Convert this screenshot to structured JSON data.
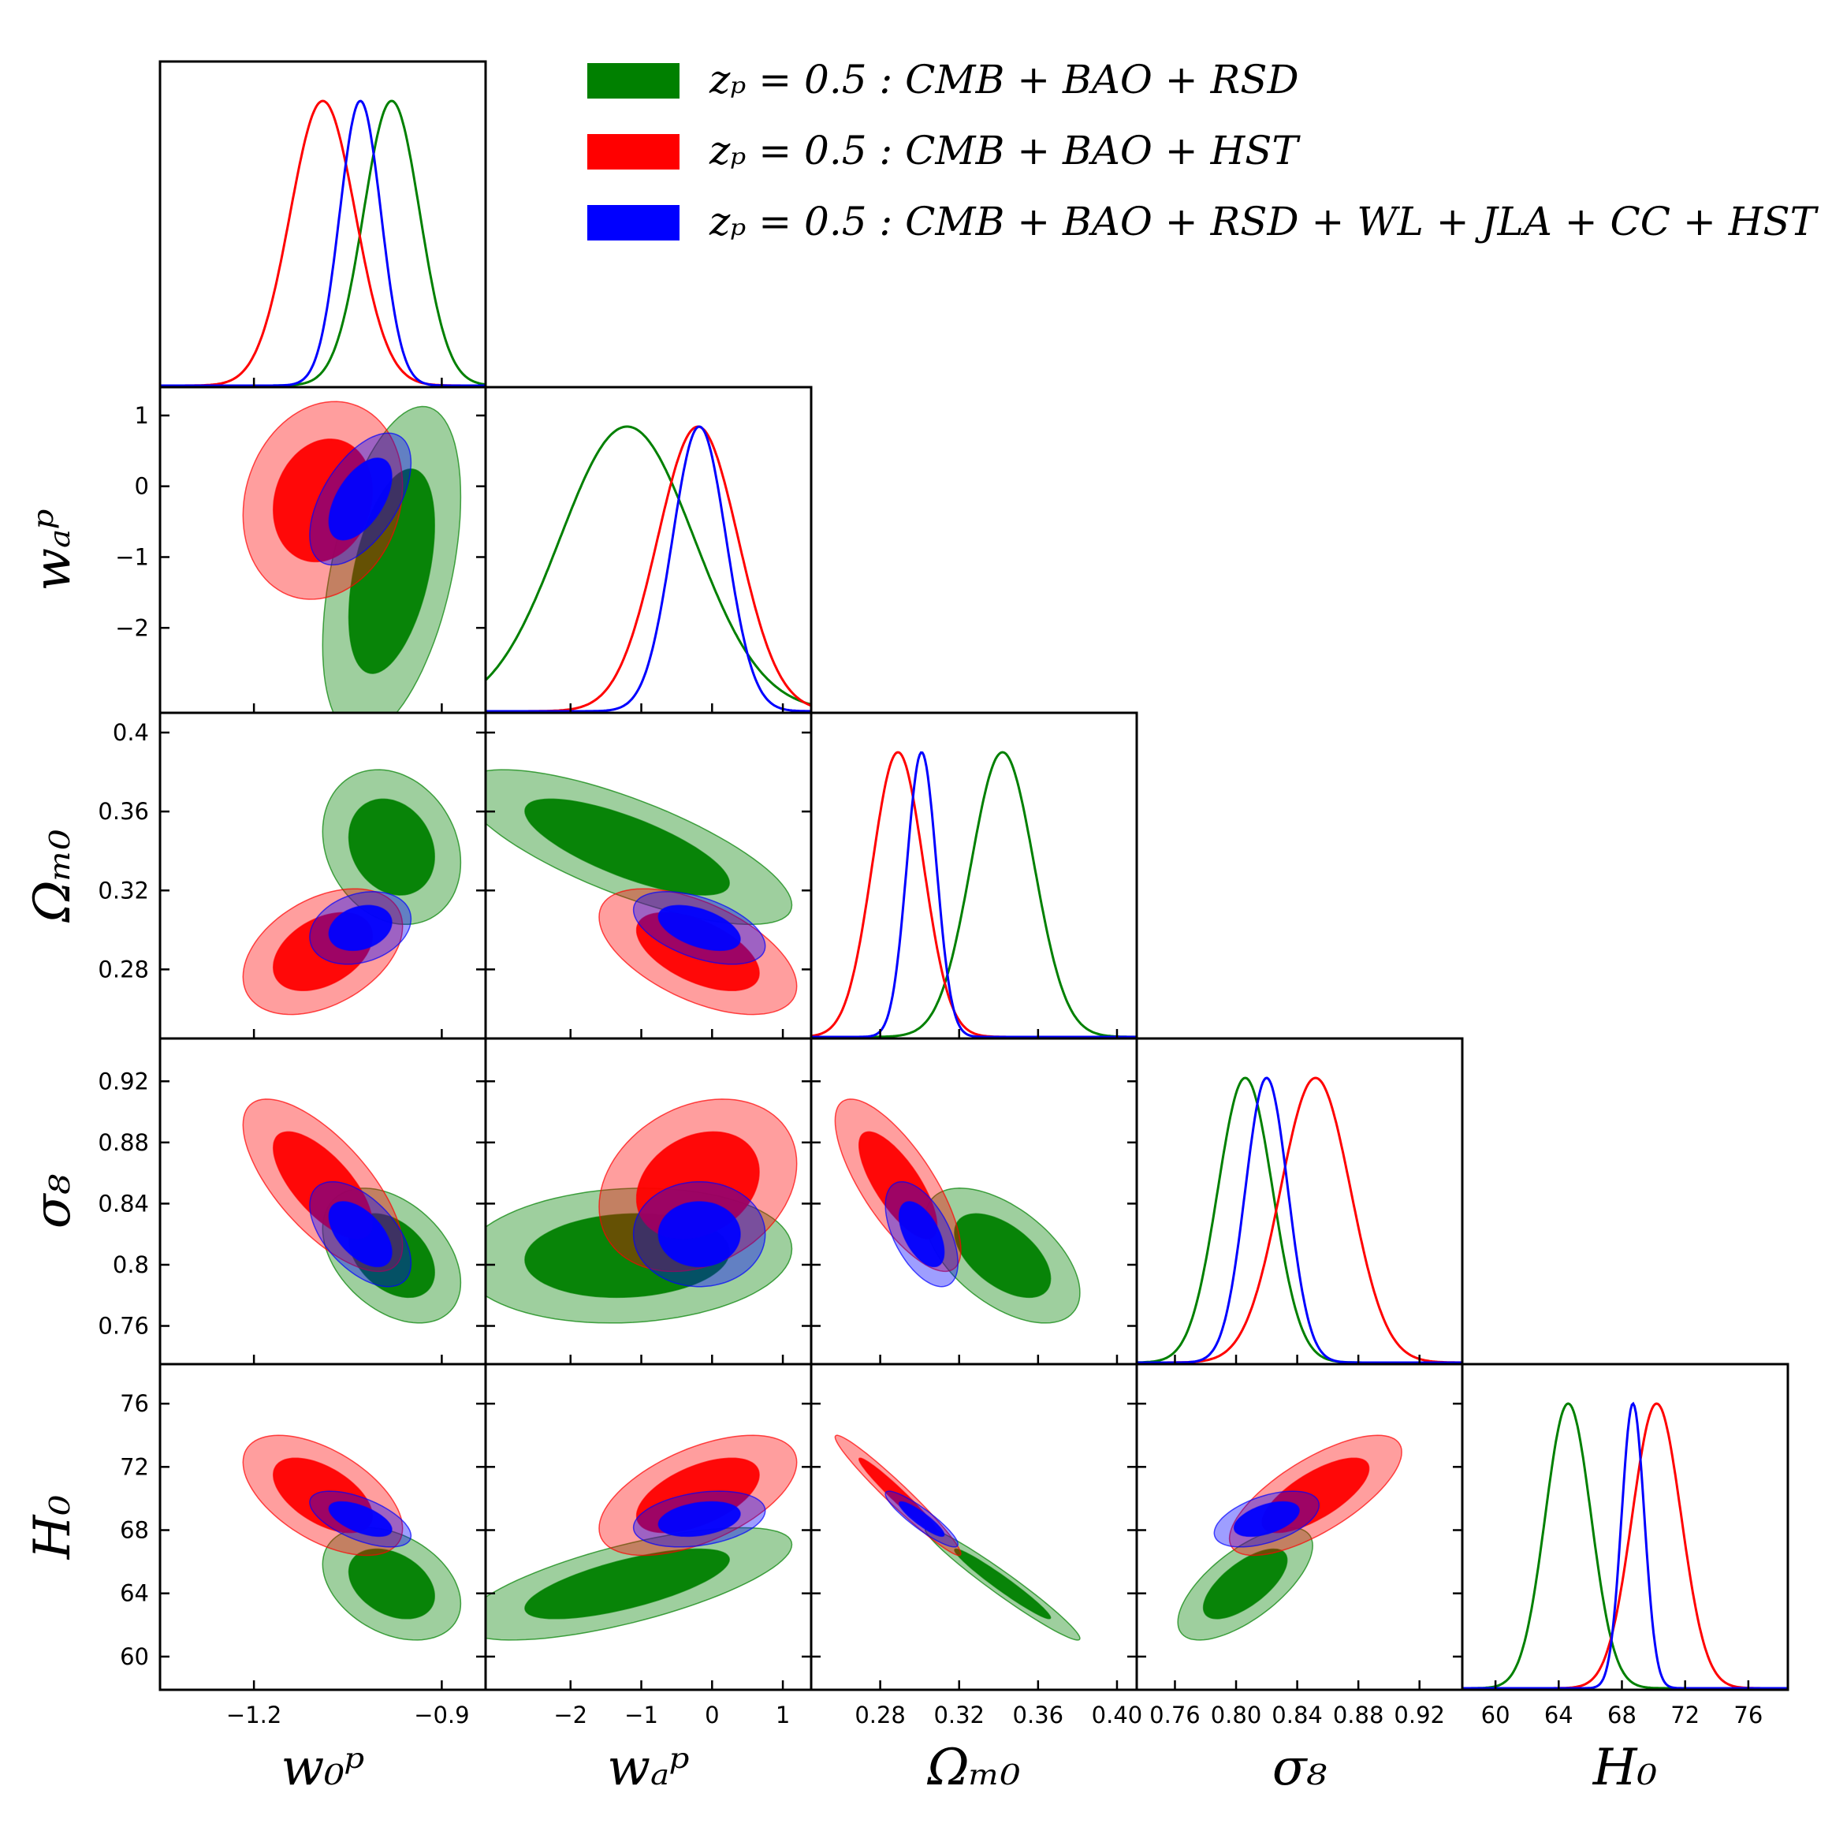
{
  "chart_data": {
    "type": "triangle",
    "parameters": [
      {
        "key": "w0",
        "label": "w₀ᵖ",
        "range": [
          -1.35,
          -0.83
        ],
        "ticks": [
          -1.2,
          -0.9
        ],
        "tick_labels": [
          "−1.2",
          "−0.9"
        ]
      },
      {
        "key": "wa",
        "label": "wₐᵖ",
        "range": [
          -3.2,
          1.4
        ],
        "ticks": [
          -2,
          -1,
          0,
          1
        ],
        "tick_labels": [
          "−2",
          "−1",
          "0",
          "1"
        ]
      },
      {
        "key": "Om",
        "label": "Ωₘ₀",
        "range": [
          0.245,
          0.41
        ],
        "ticks": [
          0.28,
          0.32,
          0.36,
          0.4
        ],
        "tick_labels": [
          "0.28",
          "0.32",
          "0.36",
          "0.40"
        ]
      },
      {
        "key": "s8",
        "label": "σ₈",
        "range": [
          0.735,
          0.948
        ],
        "ticks": [
          0.76,
          0.8,
          0.84,
          0.88,
          0.92
        ],
        "tick_labels": [
          "0.76",
          "0.80",
          "0.84",
          "0.88",
          "0.92"
        ]
      },
      {
        "key": "H0",
        "label": "H₀",
        "range": [
          57.9,
          78.5
        ],
        "ticks": [
          60,
          64,
          68,
          72,
          76
        ],
        "tick_labels": [
          "60",
          "64",
          "68",
          "72",
          "76"
        ]
      }
    ],
    "y_tick_labels": {
      "wa": [
        "−2",
        "−1",
        "0",
        "1"
      ],
      "Om": [
        "0.28",
        "0.32",
        "0.36",
        "0.4"
      ],
      "s8": [
        "0.76",
        "0.8",
        "0.84",
        "0.88",
        "0.92"
      ],
      "H0": [
        "60",
        "64",
        "68",
        "72",
        "76"
      ]
    },
    "series": [
      {
        "name": "zₚ = 0.5 :  CMB + BAO + RSD",
        "color": "#008000",
        "mean": {
          "w0": -0.98,
          "wa": -1.2,
          "Om": 0.342,
          "s8": 0.806,
          "H0": 64.6
        },
        "sigma": {
          "w0": 0.045,
          "wa": 0.95,
          "Om": 0.016,
          "s8": 0.018,
          "H0": 1.45
        }
      },
      {
        "name": "zₚ = 0.5 :  CMB + BAO + HST",
        "color": "#ff0000",
        "mean": {
          "w0": -1.09,
          "wa": -0.2,
          "Om": 0.289,
          "s8": 0.852,
          "H0": 70.2
        },
        "sigma": {
          "w0": 0.052,
          "wa": 0.57,
          "Om": 0.013,
          "s8": 0.023,
          "H0": 1.55
        }
      },
      {
        "name": "zₚ = 0.5 :  CMB + BAO + RSD + WL + JLA + CC + HST",
        "color": "#0000ff",
        "mean": {
          "w0": -1.03,
          "wa": -0.18,
          "Om": 0.301,
          "s8": 0.82,
          "H0": 68.7
        },
        "sigma": {
          "w0": 0.033,
          "wa": 0.38,
          "Om": 0.0075,
          "s8": 0.014,
          "H0": 0.72
        }
      }
    ],
    "legend_position": "top-right"
  }
}
